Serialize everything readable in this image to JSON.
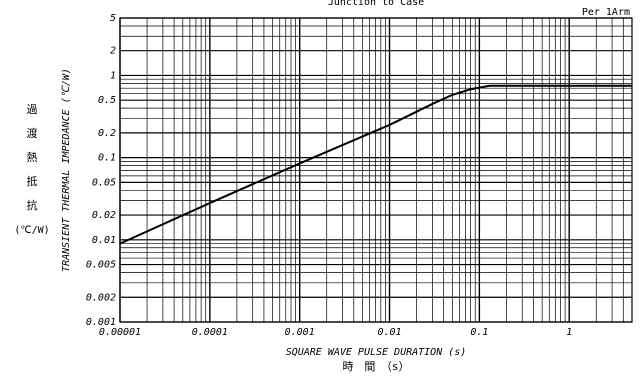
{
  "chart_data": {
    "type": "line",
    "title": "Junction to Case",
    "subtitle": "Per 1Arm",
    "x_label": "SQUARE WAVE PULSE DURATION (s)",
    "x_label_jp": "時　間　（s）",
    "y_label": "TRANSIENT THERMAL IMPEDANCE (℃/W)",
    "y_label_jp": [
      "過",
      "渡",
      "熱",
      "抵",
      "抗",
      "(℃/W)"
    ],
    "log_x": true,
    "log_y": true,
    "grid": true,
    "xlim": [
      1e-05,
      5
    ],
    "ylim": [
      0.001,
      5
    ],
    "xticks": [
      1e-05,
      0.0001,
      0.001,
      0.01,
      0.1,
      1
    ],
    "yticks": [
      5,
      2,
      1,
      0.5,
      0.2,
      0.1,
      0.05,
      0.02,
      0.01,
      0.005,
      0.002,
      0.001
    ],
    "xminor": [
      2e-05,
      3e-05,
      4e-05,
      5e-05,
      6e-05,
      7e-05,
      8e-05,
      9e-05,
      0.0002,
      0.0003,
      0.0004,
      0.0005,
      0.0006,
      0.0007,
      0.0008,
      0.0009,
      0.002,
      0.003,
      0.004,
      0.005,
      0.006,
      0.007,
      0.008,
      0.009,
      0.02,
      0.03,
      0.04,
      0.05,
      0.06,
      0.07,
      0.08,
      0.09,
      0.2,
      0.3,
      0.4,
      0.5,
      0.6,
      0.7,
      0.8,
      0.9,
      2,
      3,
      4
    ],
    "yminor": [
      0.003,
      0.004,
      0.006,
      0.007,
      0.008,
      0.009,
      0.03,
      0.04,
      0.06,
      0.07,
      0.08,
      0.09,
      0.3,
      0.4,
      0.6,
      0.7,
      0.8,
      0.9,
      3,
      4
    ],
    "series": [
      {
        "name": "Junction to Case",
        "color": "#000000",
        "x": [
          1e-05,
          0.0001,
          0.001,
          0.01,
          0.03,
          0.05,
          0.08,
          0.13,
          5
        ],
        "values": [
          0.009,
          0.028,
          0.085,
          0.25,
          0.45,
          0.58,
          0.68,
          0.75,
          0.75
        ]
      }
    ]
  }
}
